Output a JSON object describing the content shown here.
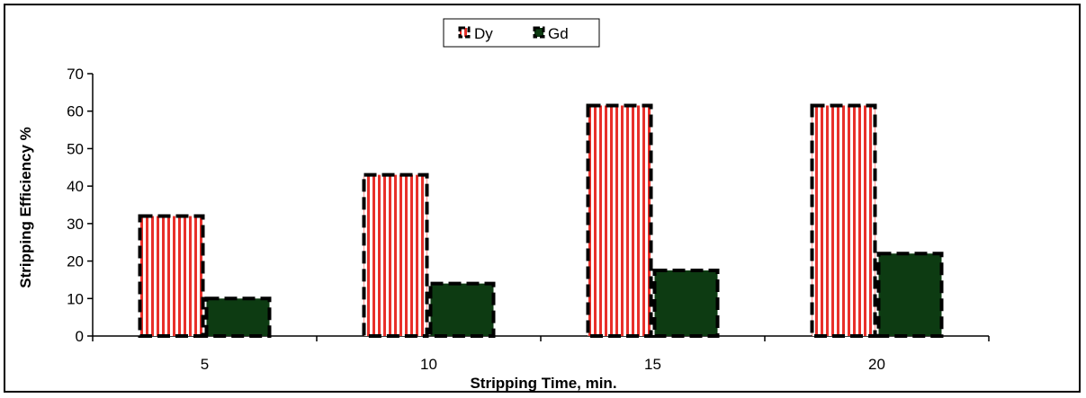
{
  "chart_data": {
    "type": "bar",
    "categories": [
      "5",
      "10",
      "15",
      "20"
    ],
    "series": [
      {
        "name": "Dy",
        "values": [
          32,
          43,
          61.5,
          61.5
        ],
        "color": "#e8302a"
      },
      {
        "name": "Gd",
        "values": [
          10,
          14,
          17.5,
          22
        ],
        "color": "#0d3b12"
      }
    ],
    "xlabel": "Stripping Time, min.",
    "ylabel": "Stripping Efficiency %",
    "ylim": [
      0,
      70
    ],
    "yticks": [
      0,
      10,
      20,
      30,
      40,
      50,
      60,
      70
    ],
    "legend_position": "top-center",
    "grid": false
  }
}
